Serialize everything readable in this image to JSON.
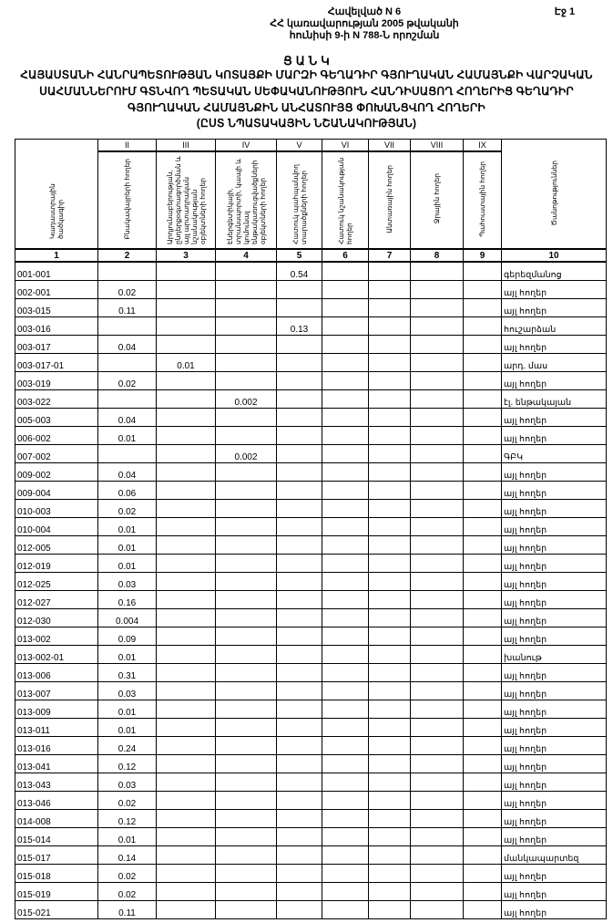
{
  "header": {
    "annex": "Հավելված N 6",
    "decision_line1": "ՀՀ կառավարության 2005 թվականի",
    "decision_line2": "հունիսի 9-ի N 788-Ն որոշման",
    "page": "Էջ 1"
  },
  "title": {
    "heading": "Ց Ա Ն Կ",
    "line1": "ՀԱՅԱՍՏԱՆԻ ՀԱՆՐԱՊԵՏՈՒԹՅԱՆ ԿՈՏԱՅՔԻ ՄԱՐԶԻ ԳԵՂԱԴԻՐ ԳՅՈՒՂԱԿԱՆ ՀԱՄԱՅՆՔԻ ՎԱՐՉԱԿԱՆ",
    "line2": "ՍԱՀՄԱՆՆԵՐՈՒՄ ԳՏՆՎՈՂ ՊԵՏԱԿԱՆ ՍԵՓԱԿԱՆՈՒԹՅՈՒՆ ՀԱՆԴԻՍԱՑՈՂ ՀՈՂԵՐԻՑ ԳԵՂԱԴԻՐ",
    "line3": "ԳՅՈՒՂԱԿԱՆ ՀԱՄԱՅՆՔԻՆ ԱՆՀԱՏՈՒՅՑ ՓՈԽԱՆՑՎՈՂ ՀՈՂԵՐԻ",
    "line4": "(ԸՍՏ ՆՊԱՏԱԿԱՅԻՆ ՆՇԱՆԱԿՈՒԹՅԱՆ)"
  },
  "table": {
    "roman": [
      "",
      "II",
      "III",
      "IV",
      "V",
      "VI",
      "VII",
      "VIII",
      "IX",
      ""
    ],
    "columns": [
      "Կադաստրային ծածկագիր",
      "Բնակավայրերի հողեր",
      "Արդյունաբերության, ընդերքօգտագործման և այլ արտադրական նշանակության օբյեկտների հողեր",
      "Էներգետիկայի, տրանսպորտի, կապի և կոմունալ ենթակառուցվածքների օբյեկտների հողեր",
      "Հատուկ պահպանվող տարածքների հողեր",
      "Հատուկ նշանակության հողեր",
      "Անտառային հողեր",
      "Ջրային հողեր",
      "Պահուստային հողեր",
      "Ծանոթություններ"
    ],
    "numbers": [
      "1",
      "2",
      "3",
      "4",
      "5",
      "6",
      "7",
      "8",
      "9",
      "10"
    ],
    "rows": [
      [
        "001-001",
        "",
        "",
        "",
        "0.54",
        "",
        "",
        "",
        "",
        "գերեզմանոց"
      ],
      [
        "002-001",
        "0.02",
        "",
        "",
        "",
        "",
        "",
        "",
        "",
        "այլ հողեր"
      ],
      [
        "003-015",
        "0.11",
        "",
        "",
        "",
        "",
        "",
        "",
        "",
        "այլ հողեր"
      ],
      [
        "003-016",
        "",
        "",
        "",
        "0.13",
        "",
        "",
        "",
        "",
        "հուշարձան"
      ],
      [
        "003-017",
        "0.04",
        "",
        "",
        "",
        "",
        "",
        "",
        "",
        "այլ հողեր"
      ],
      [
        "003-017-01",
        "",
        "0.01",
        "",
        "",
        "",
        "",
        "",
        "",
        "արդ. մաս"
      ],
      [
        "003-019",
        "0.02",
        "",
        "",
        "",
        "",
        "",
        "",
        "",
        "այլ հողեր"
      ],
      [
        "003-022",
        "",
        "",
        "0.002",
        "",
        "",
        "",
        "",
        "",
        "էլ. ենթակայան"
      ],
      [
        "005-003",
        "0.04",
        "",
        "",
        "",
        "",
        "",
        "",
        "",
        "այլ հողեր"
      ],
      [
        "006-002",
        "0.01",
        "",
        "",
        "",
        "",
        "",
        "",
        "",
        "այլ հողեր"
      ],
      [
        "007-002",
        "",
        "",
        "0.002",
        "",
        "",
        "",
        "",
        "",
        "ԳԲԿ"
      ],
      [
        "009-002",
        "0.04",
        "",
        "",
        "",
        "",
        "",
        "",
        "",
        "այլ հողեր"
      ],
      [
        "009-004",
        "0.06",
        "",
        "",
        "",
        "",
        "",
        "",
        "",
        "այլ հողեր"
      ],
      [
        "010-003",
        "0.02",
        "",
        "",
        "",
        "",
        "",
        "",
        "",
        "այլ հողեր"
      ],
      [
        "010-004",
        "0.01",
        "",
        "",
        "",
        "",
        "",
        "",
        "",
        "այլ հողեր"
      ],
      [
        "012-005",
        "0.01",
        "",
        "",
        "",
        "",
        "",
        "",
        "",
        "այլ հողեր"
      ],
      [
        "012-019",
        "0.01",
        "",
        "",
        "",
        "",
        "",
        "",
        "",
        "այլ հողեր"
      ],
      [
        "012-025",
        "0.03",
        "",
        "",
        "",
        "",
        "",
        "",
        "",
        "այլ հողեր"
      ],
      [
        "012-027",
        "0.16",
        "",
        "",
        "",
        "",
        "",
        "",
        "",
        "այլ հողեր"
      ],
      [
        "012-030",
        "0.004",
        "",
        "",
        "",
        "",
        "",
        "",
        "",
        "այլ հողեր"
      ],
      [
        "013-002",
        "0.09",
        "",
        "",
        "",
        "",
        "",
        "",
        "",
        "այլ հողեր"
      ],
      [
        "013-002-01",
        "0.01",
        "",
        "",
        "",
        "",
        "",
        "",
        "",
        "խանութ"
      ],
      [
        "013-006",
        "0.31",
        "",
        "",
        "",
        "",
        "",
        "",
        "",
        "այլ հողեր"
      ],
      [
        "013-007",
        "0.03",
        "",
        "",
        "",
        "",
        "",
        "",
        "",
        "այլ հողեր"
      ],
      [
        "013-009",
        "0.01",
        "",
        "",
        "",
        "",
        "",
        "",
        "",
        "այլ հողեր"
      ],
      [
        "013-011",
        "0.01",
        "",
        "",
        "",
        "",
        "",
        "",
        "",
        "այլ հողեր"
      ],
      [
        "013-016",
        "0.24",
        "",
        "",
        "",
        "",
        "",
        "",
        "",
        "այլ հողեր"
      ],
      [
        "013-041",
        "0.12",
        "",
        "",
        "",
        "",
        "",
        "",
        "",
        "այլ հողեր"
      ],
      [
        "013-043",
        "0.03",
        "",
        "",
        "",
        "",
        "",
        "",
        "",
        "այլ հողեր"
      ],
      [
        "013-046",
        "0.02",
        "",
        "",
        "",
        "",
        "",
        "",
        "",
        "այլ հողեր"
      ],
      [
        "014-008",
        "0.12",
        "",
        "",
        "",
        "",
        "",
        "",
        "",
        "այլ հողեր"
      ],
      [
        "015-014",
        "0.01",
        "",
        "",
        "",
        "",
        "",
        "",
        "",
        "այլ հողեր"
      ],
      [
        "015-017",
        "0.14",
        "",
        "",
        "",
        "",
        "",
        "",
        "",
        "մանկապարտեզ"
      ],
      [
        "015-018",
        "0.02",
        "",
        "",
        "",
        "",
        "",
        "",
        "",
        "այլ հողեր"
      ],
      [
        "015-019",
        "0.02",
        "",
        "",
        "",
        "",
        "",
        "",
        "",
        "այլ հողեր"
      ],
      [
        "015-021",
        "0.11",
        "",
        "",
        "",
        "",
        "",
        "",
        "",
        "այլ հողեր"
      ]
    ]
  }
}
